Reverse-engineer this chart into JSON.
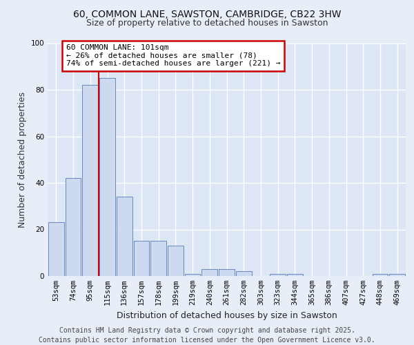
{
  "title_line1": "60, COMMON LANE, SAWSTON, CAMBRIDGE, CB22 3HW",
  "title_line2": "Size of property relative to detached houses in Sawston",
  "xlabel": "Distribution of detached houses by size in Sawston",
  "ylabel": "Number of detached properties",
  "categories": [
    "53sqm",
    "74sqm",
    "95sqm",
    "115sqm",
    "136sqm",
    "157sqm",
    "178sqm",
    "199sqm",
    "219sqm",
    "240sqm",
    "261sqm",
    "282sqm",
    "303sqm",
    "323sqm",
    "344sqm",
    "365sqm",
    "386sqm",
    "407sqm",
    "427sqm",
    "448sqm",
    "469sqm"
  ],
  "values": [
    23,
    42,
    82,
    85,
    34,
    15,
    15,
    13,
    1,
    3,
    3,
    2,
    0,
    1,
    1,
    0,
    0,
    0,
    0,
    1,
    1
  ],
  "bar_color": "#ccd9ee",
  "bar_edge_color": "#6688bb",
  "red_line_x": 2.5,
  "annotation_text": "60 COMMON LANE: 101sqm\n← 26% of detached houses are smaller (78)\n74% of semi-detached houses are larger (221) →",
  "annotation_box_color": "#ffffff",
  "annotation_box_edge": "#cc0000",
  "ylim": [
    0,
    100
  ],
  "yticks": [
    0,
    20,
    40,
    60,
    80,
    100
  ],
  "footer_line1": "Contains HM Land Registry data © Crown copyright and database right 2025.",
  "footer_line2": "Contains public sector information licensed under the Open Government Licence v3.0.",
  "plot_bg_color": "#dce6f5",
  "fig_bg_color": "#e8eef8",
  "grid_color": "#ffffff",
  "title_fontsize": 10,
  "subtitle_fontsize": 9,
  "axis_label_fontsize": 9,
  "tick_fontsize": 7.5,
  "annotation_fontsize": 8,
  "footer_fontsize": 7
}
